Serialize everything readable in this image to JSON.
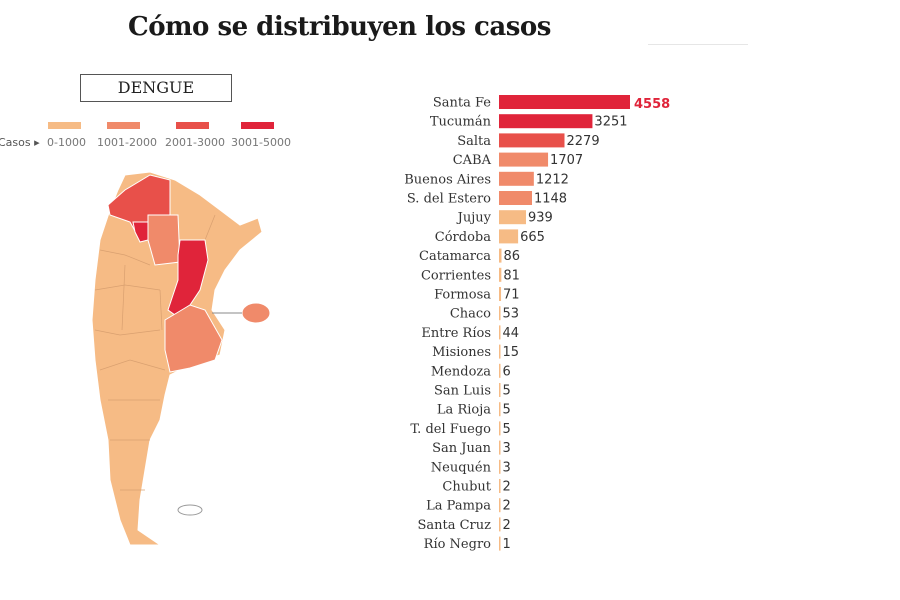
{
  "title": "Cómo se distribuyen los casos",
  "map": {
    "label": "DENGUE",
    "legend_title": "Casos",
    "legend": [
      {
        "range": "0-1000",
        "color": "#f6bb85"
      },
      {
        "range": "1001-2000",
        "color": "#f08a6a"
      },
      {
        "range": "2001-3000",
        "color": "#e8504a"
      },
      {
        "range": "3001-5000",
        "color": "#e0243a"
      }
    ]
  },
  "chart_data": {
    "type": "bar",
    "orientation": "horizontal",
    "categories": [
      "Santa Fe",
      "Tucumán",
      "Salta",
      "CABA",
      "Buenos Aires",
      "S. del Estero",
      "Jujuy",
      "Córdoba",
      "Catamarca",
      "Corrientes",
      "Formosa",
      "Chaco",
      "Entre Ríos",
      "Misiones",
      "Mendoza",
      "San Luis",
      "La Rioja",
      "T. del Fuego",
      "San Juan",
      "Neuquén",
      "Chubut",
      "La Pampa",
      "Santa Cruz",
      "Río Negro"
    ],
    "values": [
      4558,
      3251,
      2279,
      1707,
      1212,
      1148,
      939,
      665,
      86,
      81,
      71,
      53,
      44,
      15,
      6,
      5,
      5,
      5,
      3,
      3,
      2,
      2,
      2,
      1
    ],
    "data_labels": [
      "4558",
      "3251",
      "2279",
      "1707",
      "1212",
      "1148",
      "939",
      "665",
      "86",
      "81",
      "71",
      "53",
      "44",
      "15",
      "6",
      "5",
      "5",
      "5",
      "3",
      "3",
      "2",
      "2",
      "2",
      "1"
    ],
    "xlim": [
      0,
      4558
    ],
    "grid": false,
    "highlight_color": "#e0243a"
  }
}
